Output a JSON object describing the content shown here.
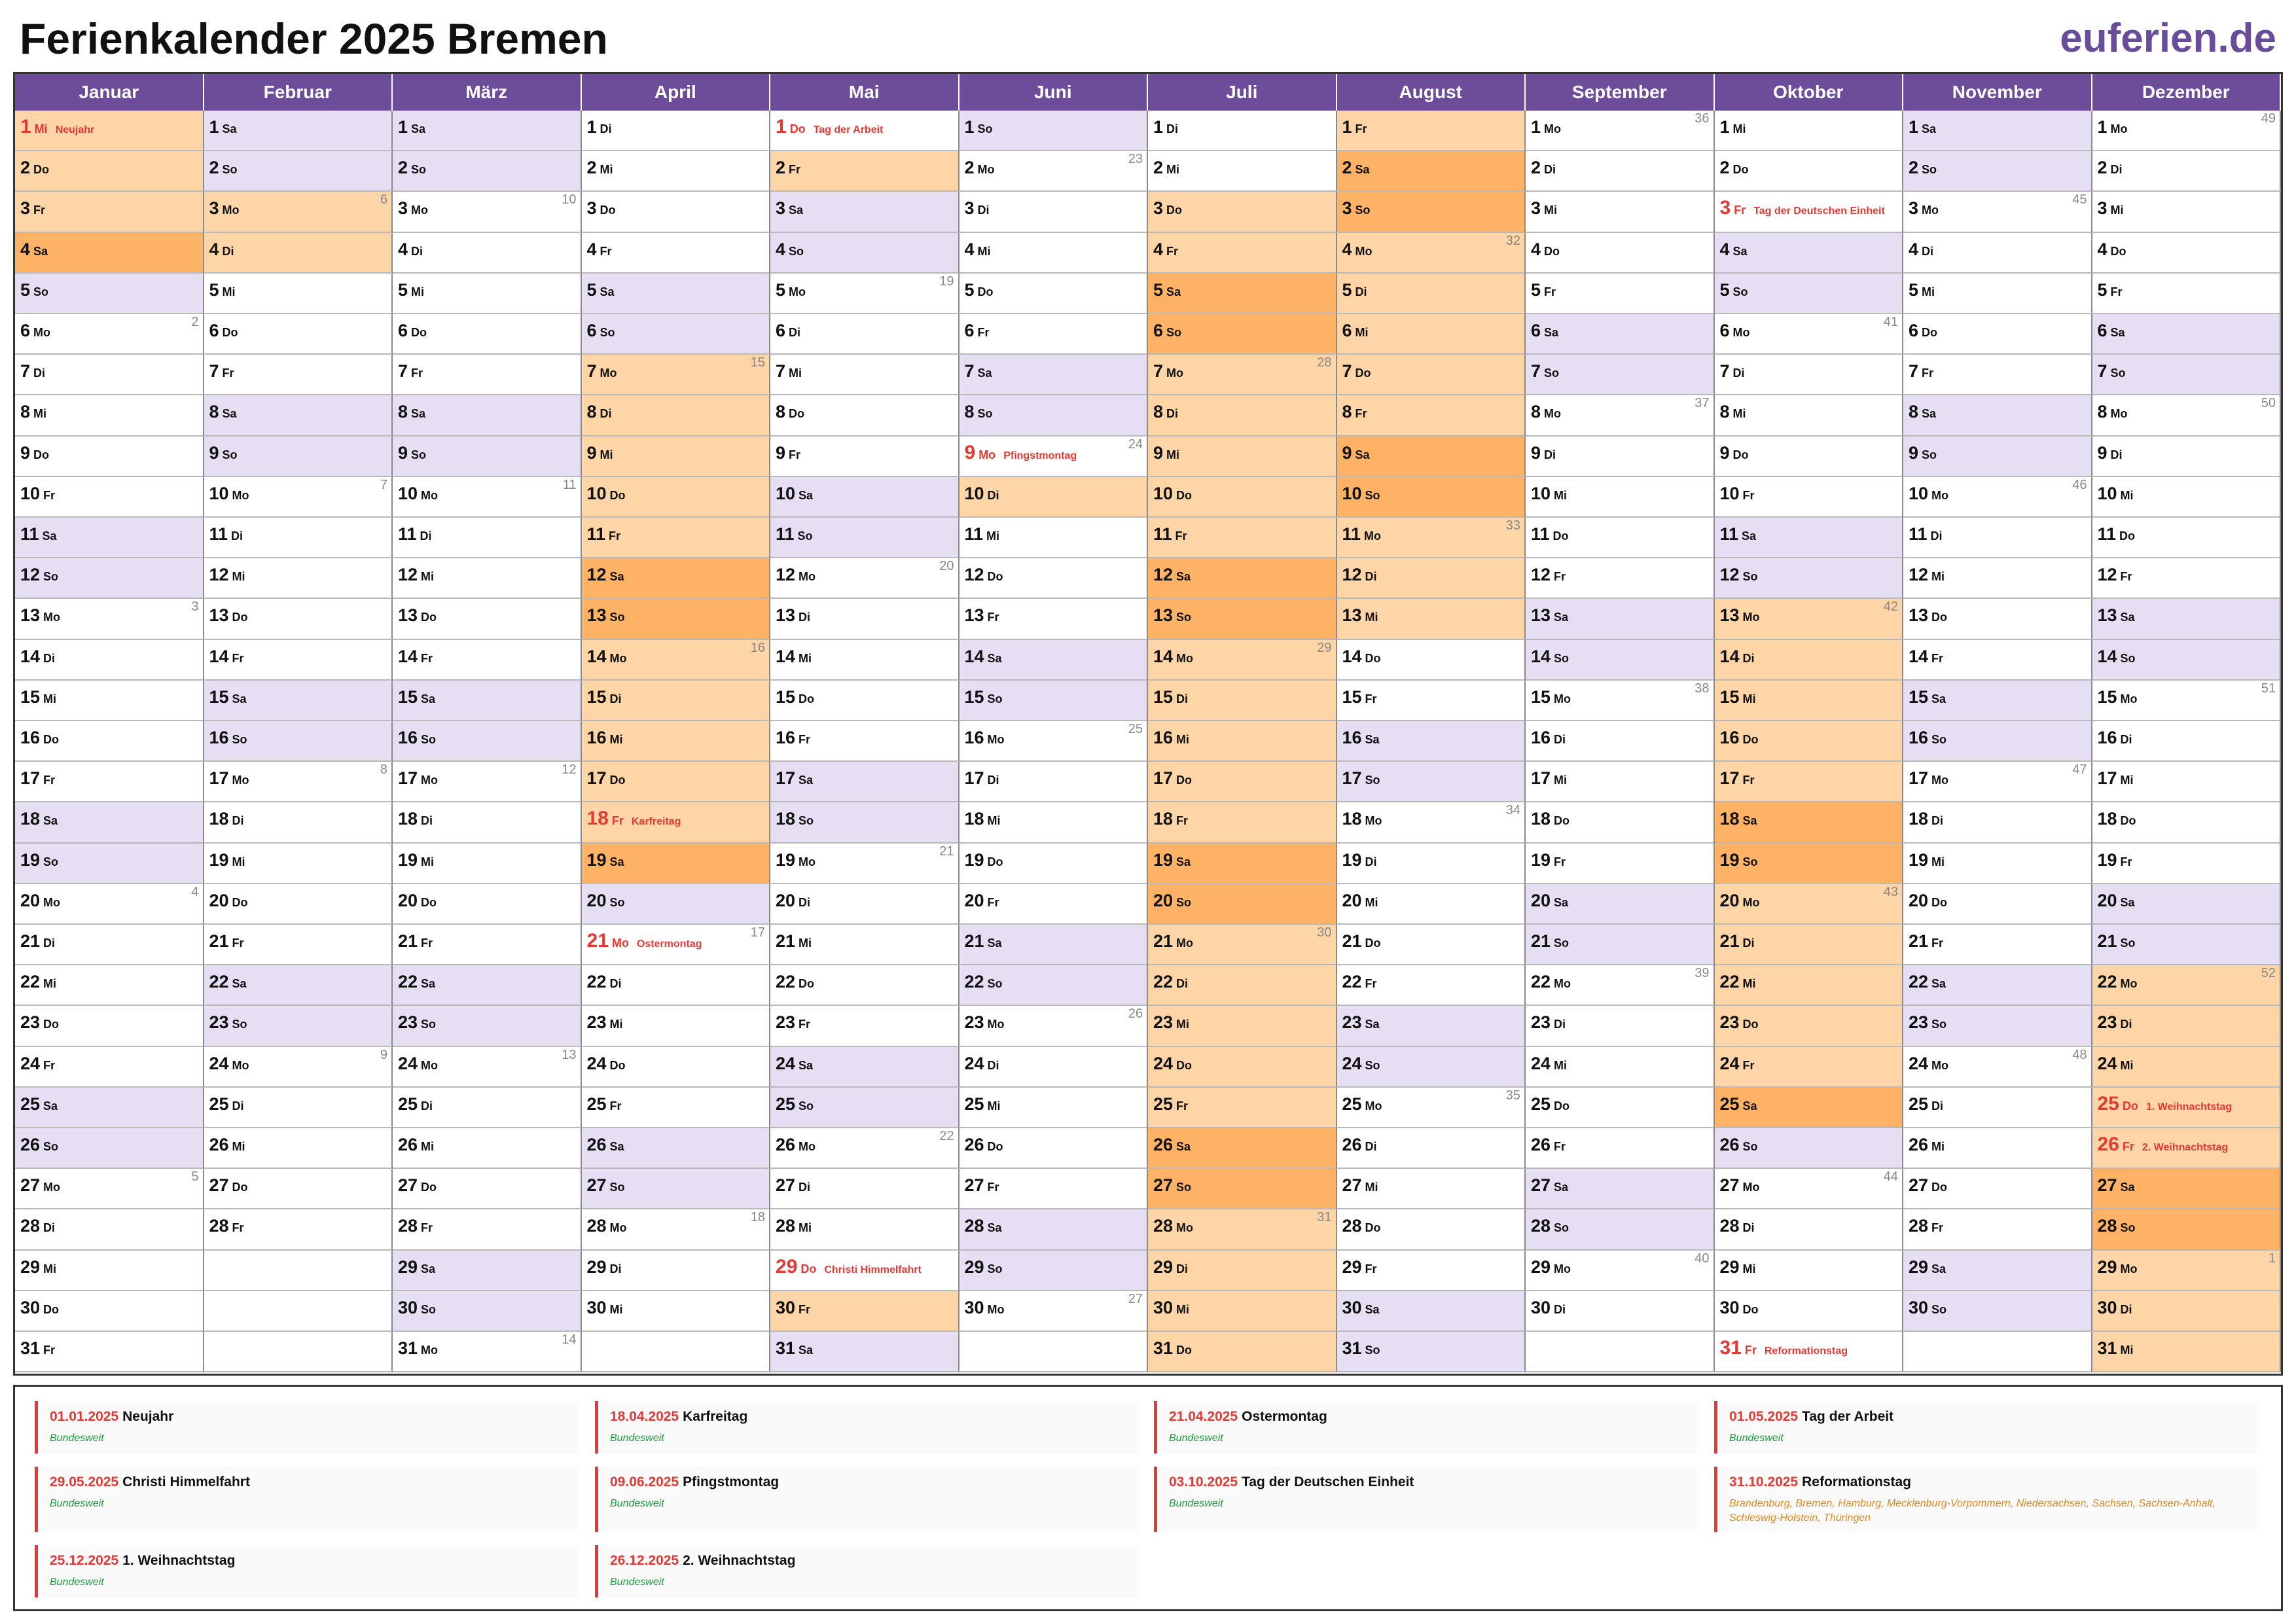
{
  "page": {
    "title": "Ferienkalender 2025 Bremen",
    "brand": "euferien.de"
  },
  "calendar": {
    "months": [
      {
        "name": "Januar",
        "days": 31,
        "start": 2
      },
      {
        "name": "Februar",
        "days": 28,
        "start": 5
      },
      {
        "name": "März",
        "days": 31,
        "start": 5
      },
      {
        "name": "April",
        "days": 30,
        "start": 1
      },
      {
        "name": "Mai",
        "days": 31,
        "start": 3
      },
      {
        "name": "Juni",
        "days": 30,
        "start": 6
      },
      {
        "name": "Juli",
        "days": 31,
        "start": 1
      },
      {
        "name": "August",
        "days": 31,
        "start": 4
      },
      {
        "name": "September",
        "days": 30,
        "start": 0
      },
      {
        "name": "Oktober",
        "days": 31,
        "start": 2
      },
      {
        "name": "November",
        "days": 30,
        "start": 5
      },
      {
        "name": "Dezember",
        "days": 31,
        "start": 0
      }
    ],
    "weekdays": [
      "Mo",
      "Di",
      "Mi",
      "Do",
      "Fr",
      "Sa",
      "So"
    ],
    "holidays": {
      "0-1": "Neujahr",
      "3-18": "Karfreitag",
      "3-21": "Ostermontag",
      "4-1": "Tag der Arbeit",
      "4-29": "Christi Himmelfahrt",
      "5-9": "Pfingstmontag",
      "9-3": "Tag der Deutschen Einheit",
      "9-31": "Reformationstag",
      "11-25": "1. Weihnachtstag",
      "11-26": "2. Weihnachtstag"
    },
    "vacations": [
      {
        "month": 0,
        "from": 1,
        "to": 4
      },
      {
        "month": 1,
        "from": 3,
        "to": 4
      },
      {
        "month": 3,
        "from": 7,
        "to": 19
      },
      {
        "month": 4,
        "from": 2,
        "to": 2
      },
      {
        "month": 4,
        "from": 30,
        "to": 30
      },
      {
        "month": 5,
        "from": 10,
        "to": 10
      },
      {
        "month": 6,
        "from": 3,
        "to": 31
      },
      {
        "month": 7,
        "from": 1,
        "to": 13
      },
      {
        "month": 9,
        "from": 13,
        "to": 25
      },
      {
        "month": 11,
        "from": 22,
        "to": 31
      }
    ]
  },
  "legend": {
    "items": [
      {
        "date": "01.01.2025",
        "name": "Neujahr",
        "scope": "Bundesweit"
      },
      {
        "date": "18.04.2025",
        "name": "Karfreitag",
        "scope": "Bundesweit"
      },
      {
        "date": "21.04.2025",
        "name": "Ostermontag",
        "scope": "Bundesweit"
      },
      {
        "date": "01.05.2025",
        "name": "Tag der Arbeit",
        "scope": "Bundesweit"
      },
      {
        "date": "29.05.2025",
        "name": "Christi Himmelfahrt",
        "scope": "Bundesweit"
      },
      {
        "date": "09.06.2025",
        "name": "Pfingstmontag",
        "scope": "Bundesweit"
      },
      {
        "date": "03.10.2025",
        "name": "Tag der Deutschen Einheit",
        "scope": "Bundesweit"
      },
      {
        "date": "31.10.2025",
        "name": "Reformationstag",
        "scope": "Brandenburg, Bremen, Hamburg, Mecklenburg-Vorpommern, Niedersachsen, Sachsen, Sachsen-Anhalt, Schleswig-Holstein, Thüringen"
      },
      {
        "date": "25.12.2025",
        "name": "1. Weihnachtstag",
        "scope": "Bundesweit"
      },
      {
        "date": "26.12.2025",
        "name": "2. Weihnachtstag",
        "scope": "Bundesweit"
      }
    ]
  }
}
